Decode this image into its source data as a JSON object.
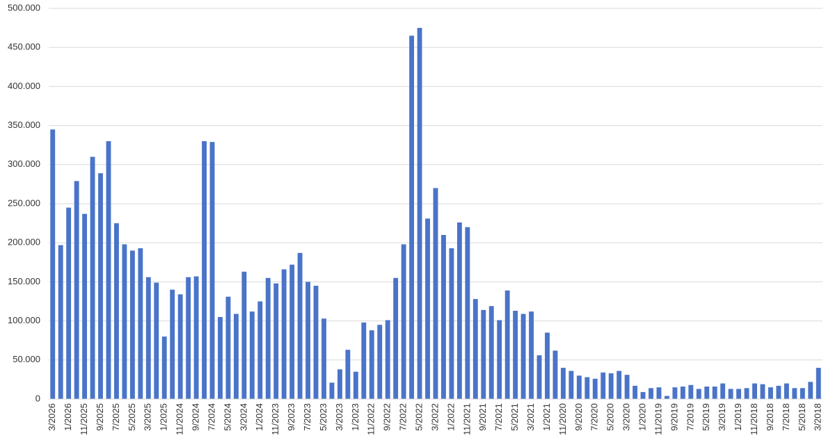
{
  "chart_data": {
    "type": "bar",
    "categories": [
      "3/2026",
      null,
      "1/2026",
      null,
      "11/2025",
      null,
      "9/2025",
      null,
      "7/2025",
      null,
      "5/2025",
      null,
      "3/2025",
      null,
      "1/2025",
      null,
      "11/2024",
      null,
      "9/2024",
      null,
      "7/2024",
      null,
      "5/2024",
      null,
      "3/2024",
      null,
      "1/2024",
      null,
      "11/2023",
      null,
      "9/2023",
      null,
      "7/2023",
      null,
      "5/2023",
      null,
      "3/2023",
      null,
      "1/2023",
      null,
      "11/2022",
      null,
      "9/2022",
      null,
      "7/2022",
      null,
      "5/2022",
      null,
      "3/2022",
      null,
      "1/2022",
      null,
      "11/2021",
      null,
      "9/2021",
      null,
      "7/2021",
      null,
      "5/2021",
      null,
      "3/2021",
      null,
      "1/2021",
      null,
      "11/2020",
      null,
      "9/2020",
      null,
      "7/2020",
      null,
      "5/2020",
      null,
      "3/2020",
      null,
      "1/2020",
      null,
      "11/2019",
      null,
      "9/2019",
      null,
      "7/2019",
      null,
      "5/2019",
      null,
      "3/2019",
      null,
      "1/2019",
      null,
      "11/2018",
      null,
      "9/2018",
      null,
      "7/2018",
      null,
      "5/2018",
      null,
      "3/2018"
    ],
    "values": [
      345000,
      197000,
      245000,
      279000,
      237000,
      310000,
      289000,
      330000,
      225000,
      198000,
      190000,
      193000,
      156000,
      149000,
      80000,
      140000,
      134000,
      156000,
      157000,
      330000,
      329000,
      105000,
      131000,
      109000,
      163000,
      112000,
      125000,
      155000,
      148000,
      166000,
      172000,
      187000,
      150000,
      145000,
      103000,
      21000,
      38000,
      63000,
      35000,
      98000,
      88000,
      95000,
      101000,
      155000,
      198000,
      465000,
      475000,
      231000,
      270000,
      210000,
      193000,
      226000,
      220000,
      128000,
      114000,
      119000,
      101000,
      139000,
      113000,
      109000,
      112000,
      56000,
      85000,
      62000,
      40000,
      36000,
      30000,
      28000,
      26000,
      34000,
      33000,
      36000,
      31000,
      17000,
      9000,
      14000,
      15000,
      4000,
      15000,
      16000,
      18000,
      13000,
      16000,
      16000,
      20000,
      13000,
      13000,
      14000,
      20000,
      19000,
      15000,
      17000,
      20000,
      14000,
      14000,
      22000,
      40000
    ],
    "color": "#4a74c8",
    "ylim": [
      0,
      500000
    ],
    "yticks": [
      0,
      {
        "value": 50000,
        "label": "50.000"
      },
      {
        "value": 100000,
        "label": "100.000"
      },
      {
        "value": 150000,
        "label": "150.000"
      },
      {
        "value": 200000,
        "label": "200.000"
      },
      {
        "value": 250000,
        "label": "250.000"
      },
      {
        "value": 300000,
        "label": "300.000"
      },
      {
        "value": 350000,
        "label": "350.000"
      },
      {
        "value": 400000,
        "label": "400.000"
      },
      {
        "value": 450000,
        "label": "450.000"
      },
      {
        "value": 500000,
        "label": "500.000"
      }
    ],
    "grid": true
  }
}
